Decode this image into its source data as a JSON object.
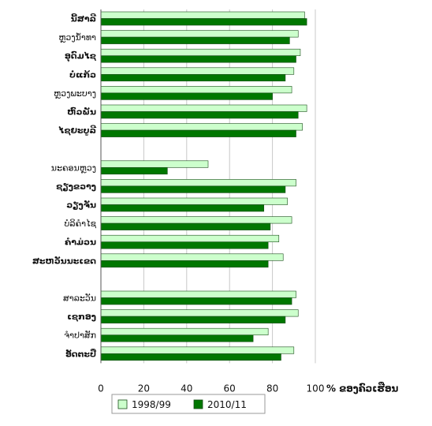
{
  "chart_data": {
    "type": "bar",
    "orientation": "horizontal",
    "categories": [
      "ນີ້ສາລີ",
      "ຫຼວງນ້ຳທາ",
      "ອຸດົມໄຊ",
      "ບໍ່ແກ້ວ",
      "ຫຼວງພະບາງ",
      "ຫົວພັນ",
      "ໄຊຍະບູລີ",
      "",
      "ນະຄອນຫຼວງ",
      "ຊຽງຂວາງ",
      "ວຽງຈັນ",
      "ບໍລິຄຳໄຊ",
      "ຄຳມ່ວນ",
      "ສະຫວັນນະເຂດ",
      "",
      "ສາລະວັນ",
      "ເຊກອງ",
      "ຈຳປາສັກ",
      "ອັດຕະປື"
    ],
    "bold_categories": [
      "ນີ້ສາລີ",
      "ອຸດົມໄຊ",
      "ບໍ່ແກ້ວ",
      "ຫົວພັນ",
      "ໄຊຍະບູລີ",
      "ຊຽງຂວາງ",
      "ວຽງຈັນ",
      "ຄຳມ່ວນ",
      "ສະຫວັນນະເຂດ",
      "ເຊກອງ",
      "ອັດຕະປື"
    ],
    "series": [
      {
        "name": "1998/99",
        "color": "#ccffcc",
        "values": [
          95,
          92,
          93,
          90,
          89,
          96,
          94,
          null,
          50,
          91,
          87,
          89,
          83,
          85,
          null,
          91,
          92,
          78,
          90
        ]
      },
      {
        "name": "2010/11",
        "color": "#007700",
        "values": [
          96,
          88,
          91,
          86,
          80,
          92,
          91,
          null,
          31,
          86,
          76,
          79,
          78,
          78,
          null,
          89,
          86,
          71,
          84
        ]
      }
    ],
    "x_ticks": [
      "0",
      "20",
      "40",
      "60",
      "80",
      "100"
    ],
    "xlim": [
      0,
      100
    ],
    "x_unit_label": "% ຂອງຄົວເຮືອນ",
    "grid": true,
    "legend_position": "bottom"
  }
}
